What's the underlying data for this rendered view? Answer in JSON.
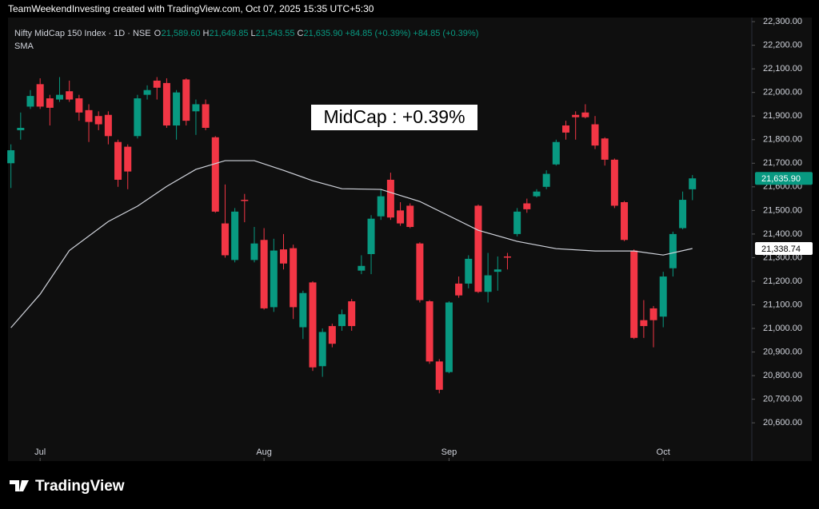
{
  "chart_data": {
    "type": "candlestick",
    "header": "TeamWeekendInvesting created with TradingView.com, Oct 07, 2025 15:35 UTC+5:30",
    "symbol": "Nifty MidCap 150 Index · 1D · NSE",
    "legend_values": [
      {
        "label": "O",
        "value": "21,589.60"
      },
      {
        "label": "H",
        "value": "21,649.85"
      },
      {
        "label": "L",
        "value": "21,543.55"
      },
      {
        "label": "C",
        "value": "21,635.90"
      }
    ],
    "change": "+84.85 (+0.39%)",
    "change_repeat": "+84.85 (+0.39%)",
    "annotation": "MidCap : +0.39%",
    "up_color": "#089981",
    "down_color": "#f23645",
    "ohlc": [
      [
        21700,
        21780,
        21595,
        21755
      ],
      [
        21840,
        21915,
        21800,
        21850
      ],
      [
        21940,
        22010,
        21930,
        21985
      ],
      [
        22035,
        22060,
        21930,
        21940
      ],
      [
        21975,
        21990,
        21860,
        21935
      ],
      [
        21970,
        22065,
        21960,
        21990
      ],
      [
        22005,
        22050,
        21960,
        21970
      ],
      [
        21975,
        21990,
        21880,
        21915
      ],
      [
        21925,
        21950,
        21790,
        21875
      ],
      [
        21900,
        21920,
        21840,
        21865
      ],
      [
        21905,
        21920,
        21780,
        21815
      ],
      [
        21790,
        21800,
        21600,
        21630
      ],
      [
        21770,
        21780,
        21590,
        21665
      ],
      [
        21815,
        21990,
        21805,
        21975
      ],
      [
        21990,
        22030,
        21970,
        22010
      ],
      [
        22050,
        22065,
        21970,
        22020
      ],
      [
        22040,
        22060,
        21850,
        21860
      ],
      [
        21860,
        22010,
        21800,
        22000
      ],
      [
        22055,
        22060,
        21860,
        21880
      ],
      [
        21920,
        21970,
        21820,
        21950
      ],
      [
        21950,
        21970,
        21840,
        21850
      ],
      [
        21810,
        21815,
        21490,
        21495
      ],
      [
        21445,
        21610,
        21300,
        21310
      ],
      [
        21290,
        21510,
        21280,
        21495
      ],
      [
        21545,
        21570,
        21450,
        21540
      ],
      [
        21290,
        21430,
        21280,
        21360
      ],
      [
        21375,
        21425,
        21080,
        21085
      ],
      [
        21090,
        21380,
        21070,
        21330
      ],
      [
        21335,
        21400,
        21250,
        21275
      ],
      [
        21340,
        21355,
        21040,
        21090
      ],
      [
        21005,
        21160,
        20955,
        21150
      ],
      [
        21195,
        21200,
        20820,
        20835
      ],
      [
        20840,
        21000,
        20795,
        20985
      ],
      [
        21010,
        21020,
        20920,
        20935
      ],
      [
        21010,
        21080,
        20990,
        21060
      ],
      [
        21115,
        21125,
        20990,
        21010
      ],
      [
        21245,
        21310,
        21230,
        21265
      ],
      [
        21315,
        21480,
        21230,
        21465
      ],
      [
        21475,
        21590,
        21460,
        21560
      ],
      [
        21630,
        21660,
        21460,
        21470
      ],
      [
        21500,
        21535,
        21435,
        21445
      ],
      [
        21520,
        21530,
        21425,
        21430
      ],
      [
        21360,
        21365,
        21110,
        21120
      ],
      [
        21115,
        21120,
        20850,
        20860
      ],
      [
        20860,
        20870,
        20725,
        20740
      ],
      [
        20815,
        21115,
        20810,
        21110
      ],
      [
        21190,
        21220,
        21130,
        21140
      ],
      [
        21190,
        21310,
        21170,
        21295
      ],
      [
        21520,
        21525,
        21150,
        21155
      ],
      [
        21155,
        21320,
        21110,
        21225
      ],
      [
        21240,
        21305,
        21160,
        21250
      ],
      [
        21305,
        21320,
        21250,
        21300
      ],
      [
        21400,
        21510,
        21390,
        21495
      ],
      [
        21530,
        21550,
        21490,
        21505
      ],
      [
        21560,
        21590,
        21555,
        21580
      ],
      [
        21600,
        21670,
        21590,
        21655
      ],
      [
        21695,
        21800,
        21690,
        21790
      ],
      [
        21860,
        21880,
        21800,
        21830
      ],
      [
        21905,
        21920,
        21800,
        21895
      ],
      [
        21915,
        21950,
        21890,
        21895
      ],
      [
        21865,
        21900,
        21760,
        21775
      ],
      [
        21805,
        21810,
        21690,
        21715
      ],
      [
        21715,
        21720,
        21510,
        21520
      ],
      [
        21535,
        21540,
        21370,
        21375
      ],
      [
        21330,
        21335,
        20955,
        20960
      ],
      [
        21035,
        21120,
        20960,
        21010
      ],
      [
        21085,
        21095,
        20920,
        21035
      ],
      [
        21050,
        21240,
        21005,
        21220
      ],
      [
        21255,
        21410,
        21220,
        21400
      ],
      [
        21425,
        21580,
        21420,
        21545
      ],
      [
        21589.6,
        21649.85,
        21543.55,
        21635.9
      ]
    ],
    "sma": {
      "name": "SMA",
      "color": "#d1d4dc",
      "x": [
        0,
        3,
        6,
        10,
        13,
        16,
        19,
        22,
        25,
        28,
        31,
        34,
        38,
        42,
        45,
        48,
        52,
        56,
        60,
        64,
        67,
        70
      ],
      "values": [
        21003,
        21145,
        21330,
        21453,
        21518,
        21602,
        21674,
        21711,
        21711,
        21670,
        21626,
        21592,
        21589,
        21538,
        21477,
        21416,
        21369,
        21338,
        21328,
        21328,
        21311,
        21338.74
      ]
    },
    "xlim": [
      -0.3,
      76.1
    ],
    "xticks": [
      {
        "value": 3,
        "label": "Jul"
      },
      {
        "value": 26,
        "label": "Aug"
      },
      {
        "value": 45,
        "label": "Sep"
      },
      {
        "value": 67,
        "label": "Oct"
      }
    ],
    "ylim": [
      20438,
      22324
    ],
    "yticks": [
      {
        "value": 22300,
        "label": "22,300.00"
      },
      {
        "value": 22200,
        "label": "22,200.00"
      },
      {
        "value": 22100,
        "label": "22,100.00"
      },
      {
        "value": 22000,
        "label": "22,000.00"
      },
      {
        "value": 21900,
        "label": "21,900.00"
      },
      {
        "value": 21800,
        "label": "21,800.00"
      },
      {
        "value": 21700,
        "label": "21,700.00"
      },
      {
        "value": 21600,
        "label": "21,600.00"
      },
      {
        "value": 21500,
        "label": "21,500.00"
      },
      {
        "value": 21400,
        "label": "21,400.00"
      },
      {
        "value": 21300,
        "label": "21,300.00"
      },
      {
        "value": 21200,
        "label": "21,200.00"
      },
      {
        "value": 21100,
        "label": "21,100.00"
      },
      {
        "value": 21000,
        "label": "21,000.00"
      },
      {
        "value": 20900,
        "label": "20,900.00"
      },
      {
        "value": 20800,
        "label": "20,800.00"
      },
      {
        "value": 20700,
        "label": "20,700.00"
      },
      {
        "value": 20600,
        "label": "20,600.00"
      }
    ],
    "price_tags": [
      {
        "value": 21635.9,
        "label": "21,635.90",
        "color": "#089981",
        "text_color": "#ffffff"
      },
      {
        "value": 21338.74,
        "label": "21,338.74",
        "color": "#ffffff",
        "text_color": "#000000"
      }
    ],
    "brand": "TradingView"
  }
}
